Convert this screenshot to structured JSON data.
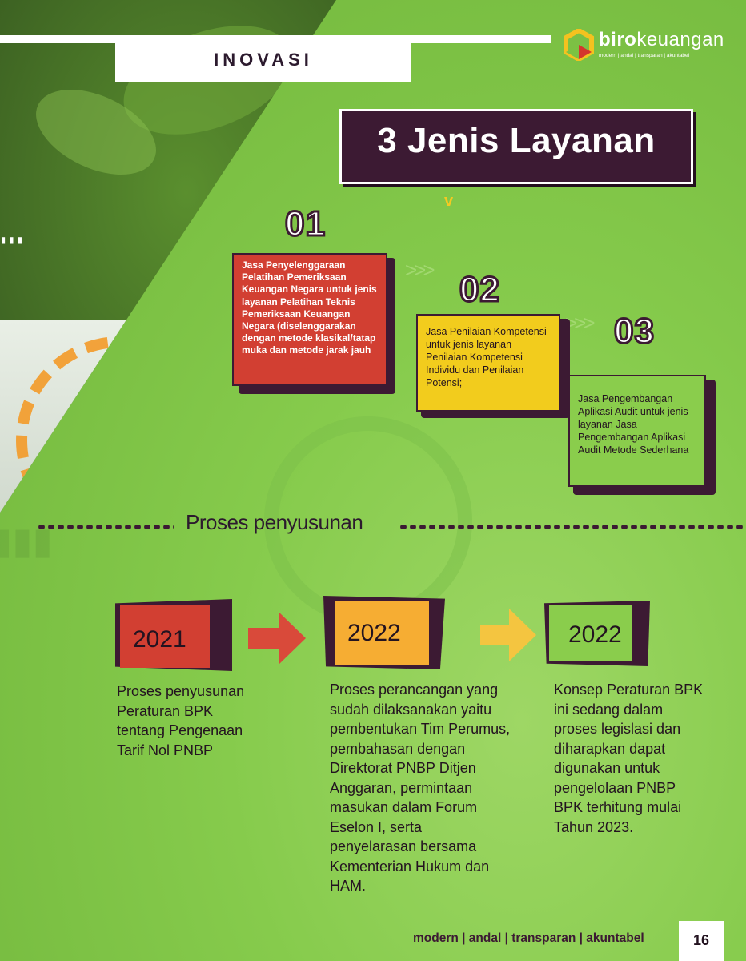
{
  "header": {
    "section_label": "INOVASI",
    "logo": {
      "name_bold": "biro",
      "name_regular": "keuangan",
      "tagline": "modern | andal | transparan | akuntabel",
      "colors": [
        "#f4c21f",
        "#d4362d",
        "#7cc242"
      ]
    }
  },
  "title": "3 Jenis Layanan",
  "caret_symbol": "v",
  "services": [
    {
      "number": "01",
      "text": "Jasa Penyelenggaraan Pelatihan Pemeriksaan Keuangan Negara untuk jenis layanan Pelatihan Teknis Pemeriksaan Keuangan Negara (diselenggarakan dengan metode klasikal/tatap muka dan metode jarak jauh",
      "color": "#d23f32"
    },
    {
      "number": "02",
      "text": "Jasa Penilaian Kompetensi untuk jenis layanan Penilaian Kompetensi Individu dan Penilaian Potensi;",
      "color": "#f2cc1d"
    },
    {
      "number": "03",
      "text": "Jasa Pengembangan Aplikasi Audit untuk jenis layanan Jasa Pengembangan Aplikasi Audit Metode Sederhana",
      "color": "#8acd4c"
    }
  ],
  "process": {
    "title": "Proses penyusunan",
    "steps": [
      {
        "year": "2021",
        "color": "#d23f32",
        "description": "Proses penyusunan Peraturan BPK tentang Pengenaan Tarif Nol PNBP"
      },
      {
        "year": "2022",
        "color": "#f6ad33",
        "description": "Proses perancangan yang sudah dilaksanakan yaitu pembentukan Tim Perumus, pembahasan dengan Direktorat PNBP Ditjen Anggaran, permintaan masukan dalam Forum Eselon I, serta penyelarasan bersama Kementerian Hukum dan HAM."
      },
      {
        "year": "2022",
        "color": "#8acd4c",
        "description": "Konsep Peraturan BPK ini sedang dalam proses legislasi dan diharapkan dapat digunakan untuk pengelolaan PNBP BPK terhitung mulai Tahun 2023."
      }
    ],
    "arrow_colors": [
      "#d94a3a",
      "#f4c540"
    ]
  },
  "footer": {
    "motto": "modern | andal | transparan | akuntabel",
    "page_number": "16"
  }
}
